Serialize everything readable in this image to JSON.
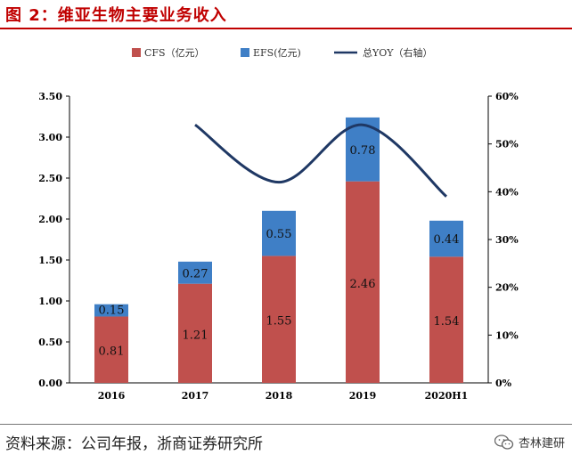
{
  "figure_title": "图 2：维亚生物主要业务收入",
  "source_note": "资料来源：公司年报，浙商证券研究所",
  "watermark": "杏林建研",
  "colors": {
    "cfs": "#c0504d",
    "efs": "#3f7fc6",
    "yoy": "#1f3864",
    "title": "#c00000"
  },
  "chart_data": {
    "type": "bar",
    "stacked": true,
    "categories": [
      "2016",
      "2017",
      "2018",
      "2019",
      "2020H1"
    ],
    "series": [
      {
        "name": "CFS（亿元）",
        "values": [
          0.81,
          1.21,
          1.55,
          2.46,
          1.54
        ]
      },
      {
        "name": "EFS(亿元)",
        "values": [
          0.15,
          0.27,
          0.55,
          0.78,
          0.44
        ]
      }
    ],
    "line_series": {
      "name": "总YOY（右轴）",
      "axis": "right",
      "x": [
        "2017",
        "2018",
        "2019",
        "2020H1"
      ],
      "values": [
        0.54,
        0.42,
        0.54,
        0.39
      ]
    },
    "y_left": {
      "ylim": [
        0,
        3.5
      ],
      "ticks": [
        "0.00",
        "0.50",
        "1.00",
        "1.50",
        "2.00",
        "2.50",
        "3.00",
        "3.50"
      ]
    },
    "y_right": {
      "ylim": [
        0,
        0.6
      ],
      "ticks": [
        "0%",
        "10%",
        "20%",
        "30%",
        "40%",
        "50%",
        "60%"
      ]
    },
    "legend_position": "top",
    "grid": false
  }
}
